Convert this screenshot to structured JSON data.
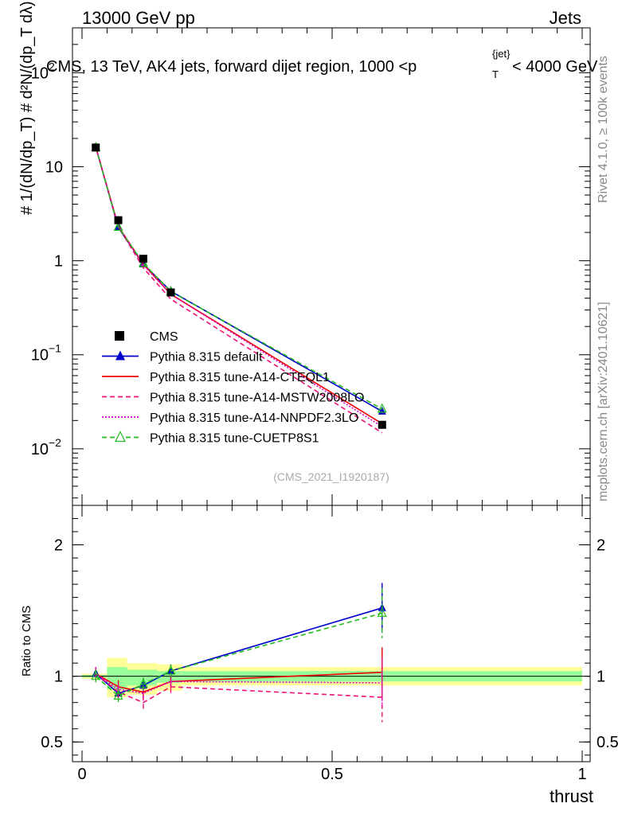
{
  "header": {
    "left": "13000 GeV pp",
    "right": "Jets"
  },
  "side": {
    "rivet": "Rivet 4.1.0, ≥ 100k events",
    "mcplots": "mcplots.cern.ch [arXiv:2401.10621]"
  },
  "watermark": "(CMS_2021_I1920187)",
  "chart_data": [
    {
      "type": "line",
      "title": "CMS, 13 TeV, AK4 jets, forward dijet region, 1000 <p_T^{jet}< 4000 GeV",
      "xlabel": "thrust",
      "ylabel": "(1/dN/dp_T) d²N/(dp_T dλ)",
      "yscale": "log",
      "xlim": [
        0,
        1
      ],
      "ylim": [
        0.0025,
        300
      ],
      "x": [
        0.0275,
        0.0725,
        0.1225,
        0.1775,
        0.6
      ],
      "yticks": [
        {
          "value": 0.01,
          "base": "10",
          "exp": "−2"
        },
        {
          "value": 0.1,
          "base": "10",
          "exp": "−1"
        },
        {
          "value": 1,
          "base": "1",
          "exp": ""
        },
        {
          "value": 10,
          "base": "10",
          "exp": ""
        },
        {
          "value": 100,
          "base": "10",
          "exp": "2"
        }
      ],
      "series": [
        {
          "name": "CMS",
          "color": "#000000",
          "style": "data",
          "values": [
            16.0,
            2.7,
            1.05,
            0.46,
            0.018
          ]
        },
        {
          "name": "Pythia 8.315 default",
          "color": "#0000cc",
          "style": "solid",
          "marker": "triangle-filled",
          "values": [
            16.2,
            2.25,
            0.92,
            0.475,
            0.025
          ]
        },
        {
          "name": "Pythia 8.315 tune-A14-CTEQL1",
          "color": "#ee0000",
          "style": "solid",
          "values": [
            16.2,
            2.33,
            0.92,
            0.44,
            0.0185
          ]
        },
        {
          "name": "Pythia 8.315 tune-A14-MSTW2008LO",
          "color": "#ee1177",
          "style": "dashed",
          "values": [
            16.2,
            2.3,
            0.84,
            0.39,
            0.0148
          ]
        },
        {
          "name": "Pythia 8.315 tune-A14-NNPDF2.3LO",
          "color": "#dd00cc",
          "style": "dotted",
          "values": [
            16.2,
            2.32,
            0.9,
            0.44,
            0.0172
          ]
        },
        {
          "name": "Pythia 8.315 tune-CUETP8S1",
          "color": "#22bb22",
          "style": "dashed",
          "marker": "triangle-open",
          "values": [
            16.0,
            2.28,
            0.94,
            0.47,
            0.0265
          ]
        }
      ]
    },
    {
      "type": "line",
      "title": "",
      "xlabel": "thrust",
      "ylabel": "Ratio to CMS",
      "xlim": [
        0,
        1
      ],
      "ylim": [
        0.35,
        2.3
      ],
      "xticks": [
        {
          "value": 0,
          "label": "0"
        },
        {
          "value": 0.5,
          "label": "0.5"
        },
        {
          "value": 1,
          "label": "1"
        }
      ],
      "yticks": [
        {
          "value": 0.5,
          "label": "0.5"
        },
        {
          "value": 1,
          "label": "1"
        },
        {
          "value": 2,
          "label": "2"
        }
      ],
      "bands": [
        {
          "x0": 0.0,
          "x1": 0.05,
          "green": [
            0.99,
            1.01
          ],
          "yellow": [
            0.98,
            1.02
          ]
        },
        {
          "x0": 0.05,
          "x1": 0.09,
          "green": [
            0.9,
            1.07
          ],
          "yellow": [
            0.84,
            1.14
          ]
        },
        {
          "x0": 0.09,
          "x1": 0.15,
          "green": [
            0.93,
            1.05
          ],
          "yellow": [
            0.86,
            1.1
          ]
        },
        {
          "x0": 0.15,
          "x1": 0.2,
          "green": [
            0.95,
            1.04
          ],
          "yellow": [
            0.89,
            1.09
          ]
        },
        {
          "x0": 0.2,
          "x1": 1.0,
          "green": [
            0.96,
            1.04
          ],
          "yellow": [
            0.93,
            1.07
          ]
        }
      ],
      "x": [
        0.0275,
        0.0725,
        0.1225,
        0.1775,
        0.6
      ],
      "series": [
        {
          "name": "Pythia 8.315 default",
          "color": "#0000cc",
          "style": "solid",
          "marker": "triangle-filled",
          "values": [
            1.02,
            0.87,
            0.93,
            1.04,
            1.52
          ]
        },
        {
          "name": "Pythia 8.315 tune-A14-CTEQL1",
          "color": "#ee0000",
          "style": "solid",
          "values": [
            1.02,
            0.92,
            0.88,
            0.96,
            1.03
          ]
        },
        {
          "name": "Pythia 8.315 tune-A14-MSTW2008LO",
          "color": "#ee1177",
          "style": "dashed",
          "values": [
            1.02,
            0.88,
            0.8,
            0.92,
            0.84
          ]
        },
        {
          "name": "Pythia 8.315 tune-A14-NNPDF2.3LO",
          "color": "#dd00cc",
          "style": "dotted",
          "values": [
            1.02,
            0.9,
            0.87,
            0.96,
            0.95
          ]
        },
        {
          "name": "Pythia 8.315 tune-CUETP8S1",
          "color": "#22bb22",
          "style": "dashed",
          "marker": "triangle-open",
          "values": [
            1.0,
            0.85,
            0.94,
            1.04,
            1.48
          ]
        }
      ]
    }
  ]
}
